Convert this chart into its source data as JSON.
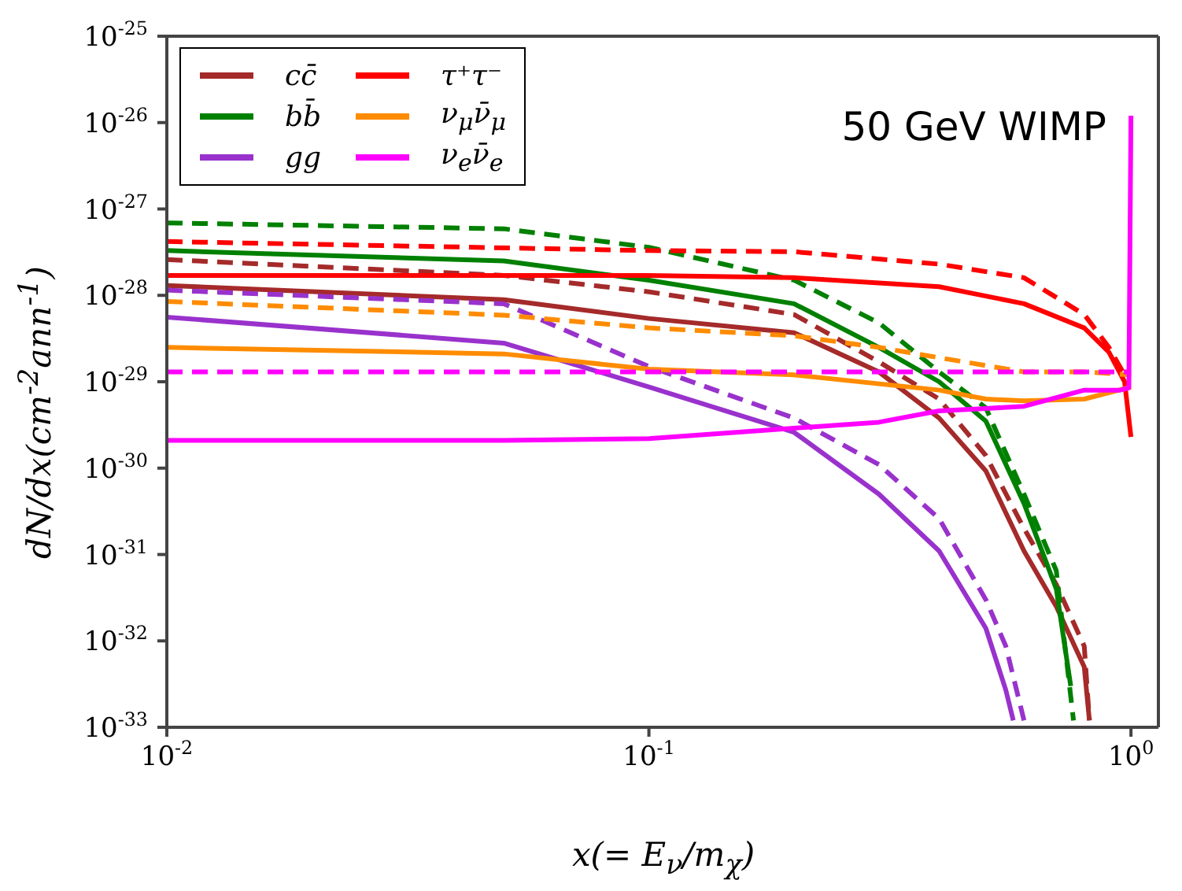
{
  "chart_data": {
    "type": "line",
    "xlabel": "x(= E$_{ν}$/m$_{χ}$)",
    "ylabel": "dN/dx(cm$^{-2}$ann$^{-1}$)",
    "annotations": [
      "50 GeV WIMP"
    ],
    "log": "xy",
    "xlim": [
      0.01,
      1.14
    ],
    "ylim": [
      1e-33,
      1e-25
    ],
    "xticks": [
      {
        "value": 0.01,
        "label": "10$^{-2}$"
      },
      {
        "value": 0.1,
        "label": "10$^{-1}$"
      },
      {
        "value": 1,
        "label": "10$^{0}$"
      }
    ],
    "yticks": [
      {
        "value": 1e-33,
        "label": "10$^{-33}$"
      },
      {
        "value": 1e-32,
        "label": "10$^{-32}$"
      },
      {
        "value": 1e-31,
        "label": "10$^{-31}$"
      },
      {
        "value": 1e-30,
        "label": "10$^{-30}$"
      },
      {
        "value": 1e-29,
        "label": "10$^{-29}$"
      },
      {
        "value": 1e-28,
        "label": "10$^{-28}$"
      },
      {
        "value": 1e-27,
        "label": "10$^{-27}$"
      },
      {
        "value": 1e-26,
        "label": "10$^{-26}$"
      },
      {
        "value": 1e-25,
        "label": "10$^{-25}$"
      }
    ],
    "grid": false,
    "legend": "top left",
    "series": [
      {
        "name": "cc̄",
        "color": "#a52a2a",
        "line_style": "solid",
        "x": [
          0.01,
          0.05,
          0.1,
          0.2,
          0.3,
          0.4,
          0.5,
          0.6,
          0.7,
          0.8,
          0.82
        ],
        "values": [
          1.3e-28,
          8.9e-29,
          5.4e-29,
          3.7e-29,
          1.3e-29,
          3.8e-30,
          9.3e-31,
          1.1e-31,
          2.5e-32,
          5e-33,
          1.2e-33
        ]
      },
      {
        "color": "#a52a2a",
        "line_style": "dashed",
        "x": [
          0.01,
          0.05,
          0.1,
          0.2,
          0.3,
          0.4,
          0.5,
          0.6,
          0.7,
          0.8,
          0.82
        ],
        "values": [
          2.6e-28,
          1.7e-28,
          1.1e-28,
          6e-29,
          1.7e-29,
          6.3e-30,
          1.4e-30,
          2e-31,
          4.5e-32,
          8.7e-33,
          1.2e-33
        ]
      },
      {
        "name": "bb̄",
        "color": "#008000",
        "line_style": "solid",
        "x": [
          0.01,
          0.05,
          0.1,
          0.2,
          0.3,
          0.4,
          0.5,
          0.6,
          0.7,
          0.75
        ],
        "values": [
          3.3e-28,
          2.5e-28,
          1.5e-28,
          8e-29,
          2.5e-29,
          1e-29,
          3.5e-30,
          3.9e-31,
          4e-32,
          3e-33
        ]
      },
      {
        "color": "#008000",
        "line_style": "dashed",
        "x": [
          0.01,
          0.05,
          0.1,
          0.2,
          0.3,
          0.4,
          0.5,
          0.6,
          0.7,
          0.76
        ],
        "values": [
          6.9e-28,
          5.9e-28,
          3.6e-28,
          1.5e-28,
          4.8e-29,
          1.3e-29,
          5e-30,
          5e-31,
          6.5e-32,
          1.2e-33
        ]
      },
      {
        "name": "gg",
        "color": "#9932cc",
        "line_style": "solid",
        "x": [
          0.01,
          0.05,
          0.1,
          0.2,
          0.3,
          0.4,
          0.5,
          0.55,
          0.57
        ],
        "values": [
          5.6e-29,
          2.8e-29,
          8.7e-30,
          2.6e-30,
          5e-31,
          1.1e-31,
          1.4e-32,
          2.7e-33,
          1.2e-33
        ]
      },
      {
        "color": "#9932cc",
        "line_style": "dashed",
        "x": [
          0.01,
          0.05,
          0.1,
          0.2,
          0.3,
          0.4,
          0.5,
          0.55,
          0.6
        ],
        "values": [
          1.15e-28,
          8e-29,
          1.5e-29,
          3.8e-30,
          1.1e-30,
          2.6e-31,
          3e-32,
          8.7e-33,
          1.2e-33
        ]
      },
      {
        "name": "τ⁺τ⁻",
        "color": "#ff0000",
        "line_style": "solid",
        "x": [
          0.01,
          0.05,
          0.1,
          0.2,
          0.4,
          0.6,
          0.8,
          0.9,
          0.97,
          1.0
        ],
        "values": [
          1.7e-28,
          1.7e-28,
          1.7e-28,
          1.6e-28,
          1.26e-28,
          8e-29,
          4.2e-29,
          2.2e-29,
          1e-29,
          2.3e-30
        ]
      },
      {
        "color": "#ff0000",
        "line_style": "dashed",
        "x": [
          0.01,
          0.1,
          0.2,
          0.4,
          0.6,
          0.8,
          0.9,
          0.97
        ],
        "values": [
          4.2e-28,
          3.3e-28,
          3.2e-28,
          2.3e-28,
          1.6e-28,
          6e-29,
          2.5e-29,
          1.2e-29
        ]
      },
      {
        "name": "ν$_{μ}$ν̄$_{μ}$",
        "color": "#ff8c00",
        "line_style": "solid",
        "x": [
          0.01,
          0.05,
          0.1,
          0.2,
          0.4,
          0.5,
          0.6,
          0.8,
          1.0
        ],
        "values": [
          2.5e-29,
          2.1e-29,
          1.4e-29,
          1.2e-29,
          8e-30,
          6.3e-30,
          6e-30,
          6.3e-30,
          8.7e-30
        ]
      },
      {
        "color": "#ff8c00",
        "line_style": "dashed",
        "x": [
          0.01,
          0.05,
          0.1,
          0.2,
          0.3,
          0.4,
          0.6,
          0.8,
          1.0
        ],
        "values": [
          8.5e-29,
          5.9e-29,
          4.2e-29,
          3.4e-29,
          2.5e-29,
          1.9e-29,
          1.3e-29,
          1.3e-29,
          1.2e-29
        ]
      },
      {
        "name": "ν$_{e}$ν̄$_{e}$",
        "color": "#ff00ff",
        "line_style": "solid",
        "x": [
          0.01,
          0.05,
          0.1,
          0.2,
          0.3,
          0.4,
          0.5,
          0.6,
          0.8,
          0.95,
          0.99,
          1.0
        ],
        "values": [
          2.1e-30,
          2.1e-30,
          2.2e-30,
          2.9e-30,
          3.4e-30,
          4.6e-30,
          4.9e-30,
          5.2e-30,
          8e-30,
          8e-30,
          8.5e-30,
          1.2e-26
        ]
      },
      {
        "color": "#ff00ff",
        "line_style": "dashed",
        "x": [
          0.01,
          0.1,
          0.5,
          1.0
        ],
        "values": [
          1.3e-29,
          1.3e-29,
          1.3e-29,
          1.3e-29
        ]
      }
    ]
  }
}
